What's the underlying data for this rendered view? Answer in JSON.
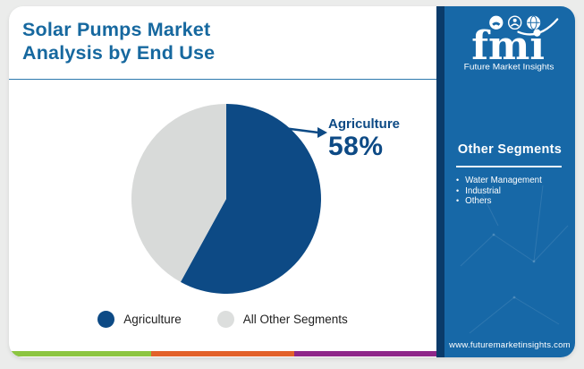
{
  "header": {
    "title_line1": "Solar Pumps Market",
    "title_line2": "Analysis by End Use"
  },
  "chart_data": {
    "type": "pie",
    "title": "Solar Pumps Market Analysis by End Use",
    "slices": [
      {
        "label": "Agriculture",
        "value": 58,
        "color": "#0d4a85"
      },
      {
        "label": "All Other Segments",
        "value": 42,
        "color": "#d8dad9"
      }
    ],
    "start_angle_deg": 0,
    "direction": "clockwise",
    "annotation": {
      "label": "Agriculture",
      "value_text": "58%"
    },
    "legend_position": "bottom"
  },
  "callout": {
    "label": "Agriculture",
    "value_text": "58%"
  },
  "legend": {
    "items": [
      {
        "label": "Agriculture",
        "color": "#0d4a85"
      },
      {
        "label": "All Other Segments",
        "color": "#dcdedd"
      }
    ]
  },
  "sidebar": {
    "bg_color": "#1768a7",
    "accent_color": "#0a3b6a",
    "logo": {
      "acronym": "fmi",
      "name": "Future Market Insights"
    },
    "panel_heading": "Other Segments",
    "segments": [
      "Water Management",
      "Industrial",
      "Others"
    ],
    "website": "www.futuremarketinsights.com"
  },
  "footer_bar": {
    "colors": [
      "#8cc540",
      "#e2612a",
      "#8e2789"
    ]
  },
  "colors": {
    "title_blue": "#16689f",
    "navy": "#0d4a85",
    "divider_blue": "#2e79ae",
    "page_bg": "#ebeceb"
  }
}
